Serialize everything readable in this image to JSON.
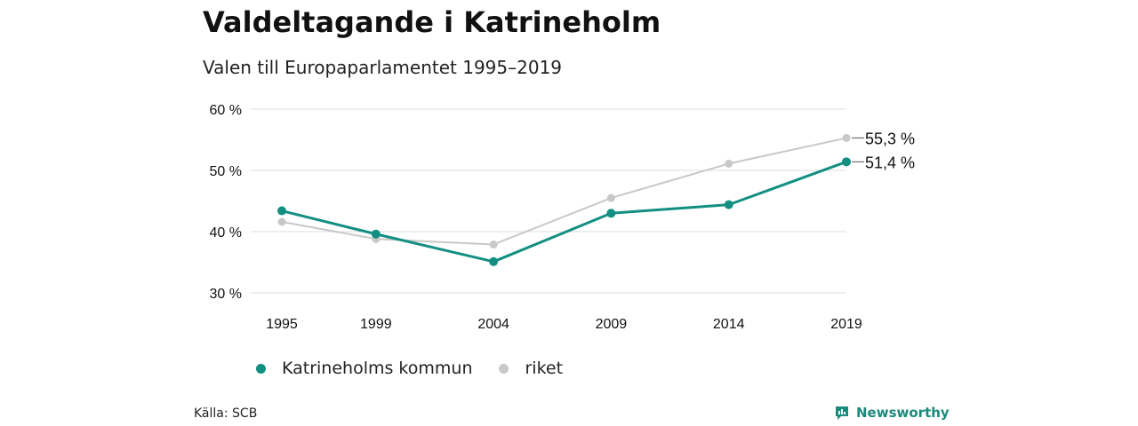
{
  "title": "Valdeltagande i Katrineholm",
  "subtitle": "Valen till Europaparlamentet 1995–2019",
  "source": "Källa: SCB",
  "brand": "Newsworthy",
  "colors": {
    "katrineholm": "#138f82",
    "riket": "#c8c8c8",
    "grid": "#dddddd",
    "brand": "#1a8a7c"
  },
  "chart_data": {
    "type": "line",
    "categories": [
      "1995",
      "1999",
      "2004",
      "2009",
      "2014",
      "2019"
    ],
    "x": [
      1995,
      1999,
      2004,
      2009,
      2014,
      2019
    ],
    "yticks": [
      30,
      40,
      50,
      60
    ],
    "ytick_labels": [
      "30 %",
      "40 %",
      "50 %",
      "60 %"
    ],
    "ylim": [
      30,
      60
    ],
    "grid": true,
    "series": [
      {
        "name": "riket",
        "values": [
          41.6,
          38.8,
          37.9,
          45.5,
          51.1,
          55.3
        ],
        "end_label": "55,3 %"
      },
      {
        "name": "Katrineholms kommun",
        "values": [
          43.4,
          39.6,
          35.1,
          43.0,
          44.4,
          51.4
        ],
        "end_label": "51,4 %"
      }
    ],
    "legend": [
      "Katrineholms kommun",
      "riket"
    ]
  }
}
